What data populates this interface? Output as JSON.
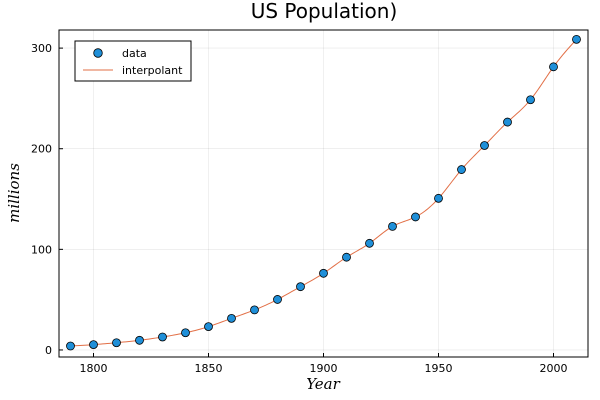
{
  "chart_data": {
    "type": "scatter",
    "title": "US Population)",
    "xlabel": "Year",
    "ylabel": "millions",
    "xlim": [
      1785,
      2015
    ],
    "ylim": [
      -7,
      318
    ],
    "xticks": [
      1800,
      1850,
      1900,
      1950,
      2000
    ],
    "yticks": [
      0,
      100,
      200,
      300
    ],
    "grid": true,
    "legend_position": "top-left",
    "series": [
      {
        "name": "data",
        "kind": "markers",
        "color": "#1f8fd8",
        "x": [
          1790,
          1800,
          1810,
          1820,
          1830,
          1840,
          1850,
          1860,
          1870,
          1880,
          1890,
          1900,
          1910,
          1920,
          1930,
          1940,
          1950,
          1960,
          1970,
          1980,
          1990,
          2000,
          2010
        ],
        "y": [
          3.9,
          5.3,
          7.2,
          9.6,
          12.9,
          17.1,
          23.2,
          31.4,
          39.8,
          50.2,
          62.9,
          76.2,
          92.2,
          106.0,
          122.8,
          132.2,
          150.7,
          179.3,
          203.2,
          226.5,
          248.7,
          281.4,
          308.7
        ]
      },
      {
        "name": "interpolant",
        "kind": "line",
        "color": "#e26f46"
      }
    ]
  }
}
